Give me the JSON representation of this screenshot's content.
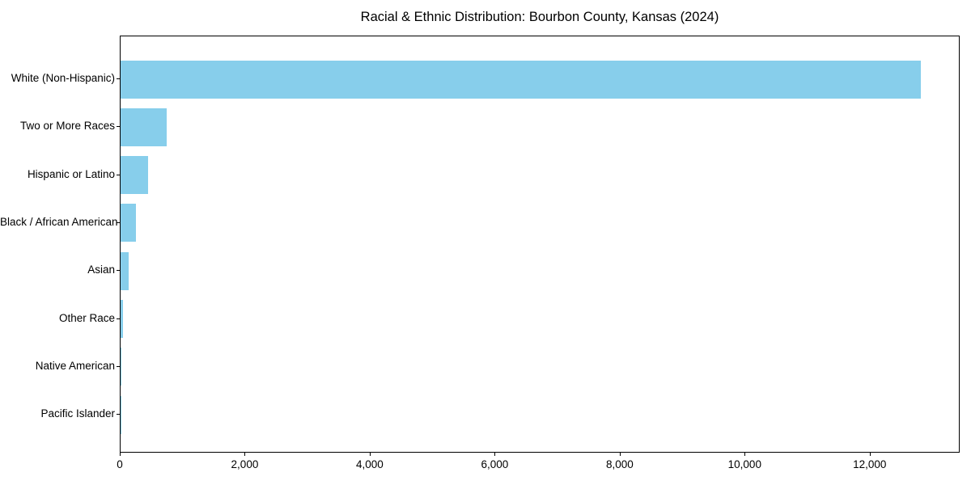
{
  "chart_data": {
    "type": "bar",
    "orientation": "horizontal",
    "title": "Racial & Ethnic Distribution: Bourbon County, Kansas (2024)",
    "categories": [
      "White (Non-Hispanic)",
      "Two or More Races",
      "Hispanic or Latino",
      "Black / African American",
      "Asian",
      "Other Race",
      "Native American",
      "Pacific Islander"
    ],
    "values": [
      12800,
      740,
      445,
      245,
      125,
      45,
      15,
      5
    ],
    "bar_color": "#87CEEB",
    "xlabel": "",
    "ylabel": "",
    "xlim": [
      0,
      13440
    ],
    "xticks": {
      "values": [
        0,
        2000,
        4000,
        6000,
        8000,
        10000,
        12000
      ],
      "labels": [
        "0",
        "2,000",
        "4,000",
        "6,000",
        "8,000",
        "10,000",
        "12,000"
      ]
    },
    "grid": false,
    "legend": null,
    "spine_color": "#000000",
    "background": "#ffffff"
  }
}
